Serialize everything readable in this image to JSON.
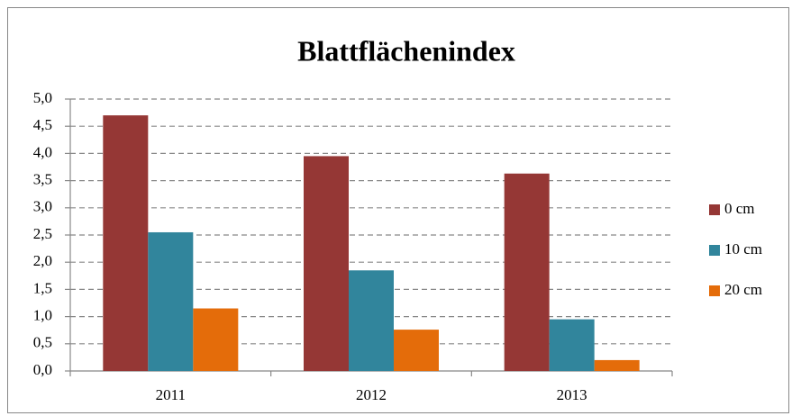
{
  "chart_data": {
    "type": "bar",
    "title": "Blattflächenindex",
    "categories": [
      "2011",
      "2012",
      "2013"
    ],
    "series": [
      {
        "name": "0 cm",
        "color": "#953735",
        "values": [
          4.7,
          3.95,
          3.63
        ]
      },
      {
        "name": "10 cm",
        "color": "#31859c",
        "values": [
          2.55,
          1.85,
          0.95
        ]
      },
      {
        "name": "20 cm",
        "color": "#e46c0a",
        "values": [
          1.15,
          0.76,
          0.2
        ]
      }
    ],
    "ylim": [
      0,
      5
    ],
    "yticks": [
      {
        "value": 0,
        "label": "0,0"
      },
      {
        "value": 0.5,
        "label": "0,5"
      },
      {
        "value": 1,
        "label": "1,0"
      },
      {
        "value": 1.5,
        "label": "1,5"
      },
      {
        "value": 2,
        "label": "2,0"
      },
      {
        "value": 2.5,
        "label": "2,5"
      },
      {
        "value": 3,
        "label": "3,0"
      },
      {
        "value": 3.5,
        "label": "3,5"
      },
      {
        "value": 4,
        "label": "4,0"
      },
      {
        "value": 4.5,
        "label": "4,5"
      },
      {
        "value": 5,
        "label": "5,0"
      }
    ],
    "grid": true,
    "legend": "right"
  }
}
